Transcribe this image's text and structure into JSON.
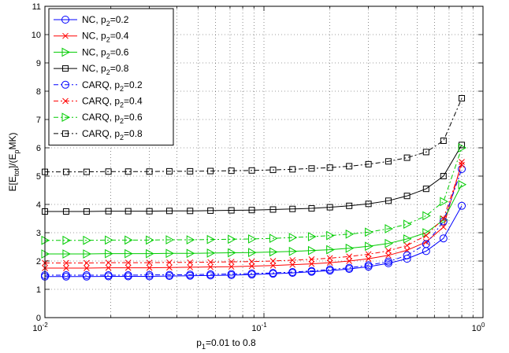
{
  "chart_data": {
    "type": "line",
    "x_scale": "log",
    "x": [
      0.01,
      0.0125,
      0.0155,
      0.0195,
      0.024,
      0.03,
      0.037,
      0.046,
      0.057,
      0.071,
      0.088,
      0.11,
      0.135,
      0.165,
      0.2,
      0.245,
      0.3,
      0.37,
      0.45,
      0.55,
      0.66,
      0.8
    ],
    "xlim": [
      0.01,
      1
    ],
    "ylim": [
      0,
      11
    ],
    "x_ticks": [
      {
        "value": 0.01,
        "base": "10",
        "exp": "-2"
      },
      {
        "value": 0.1,
        "base": "10",
        "exp": "-1"
      },
      {
        "value": 1,
        "base": "10",
        "exp": "0"
      }
    ],
    "y_ticks": [
      "0",
      "1",
      "2",
      "3",
      "4",
      "5",
      "6",
      "7",
      "8",
      "9",
      "10",
      "11"
    ],
    "xlabel": {
      "main": "p",
      "sub": "1",
      "rest": "=0.01 to 0.8"
    },
    "ylabel": {
      "a": "E[E",
      "sub": "tot",
      "b": "]/(E",
      "sub2": "p",
      "c": "MK)"
    },
    "grid": true,
    "legend_position": "top-left",
    "series": [
      {
        "name": "NC,   p2=0.2",
        "legend": {
          "pre": "NC,   p",
          "sub": "2",
          "post": "=0.2"
        },
        "color": "#0000ff",
        "marker": "circle",
        "dash": "solid",
        "values": [
          1.45,
          1.45,
          1.45,
          1.46,
          1.46,
          1.46,
          1.47,
          1.48,
          1.49,
          1.5,
          1.52,
          1.55,
          1.58,
          1.62,
          1.66,
          1.72,
          1.8,
          1.92,
          2.08,
          2.35,
          2.8,
          3.95
        ]
      },
      {
        "name": "NC,   p2=0.4",
        "legend": {
          "pre": "NC,   p",
          "sub": "2",
          "post": "=0.4"
        },
        "color": "#ff0000",
        "marker": "x",
        "dash": "solid",
        "values": [
          1.75,
          1.75,
          1.75,
          1.76,
          1.76,
          1.76,
          1.77,
          1.78,
          1.79,
          1.8,
          1.82,
          1.84,
          1.87,
          1.9,
          1.94,
          2.0,
          2.08,
          2.2,
          2.38,
          2.67,
          3.2,
          5.5
        ]
      },
      {
        "name": "NC,   p2=0.6",
        "legend": {
          "pre": "NC,   p",
          "sub": "2",
          "post": "=0.6"
        },
        "color": "#00cc00",
        "marker": "triangle-right",
        "dash": "solid",
        "values": [
          2.25,
          2.25,
          2.25,
          2.26,
          2.26,
          2.26,
          2.27,
          2.27,
          2.28,
          2.29,
          2.3,
          2.32,
          2.34,
          2.37,
          2.4,
          2.45,
          2.52,
          2.62,
          2.78,
          3.0,
          3.45,
          4.7
        ]
      },
      {
        "name": "NC,   p2=0.8",
        "legend": {
          "pre": "NC,   p",
          "sub": "2",
          "post": "=0.8"
        },
        "color": "#000000",
        "marker": "square",
        "dash": "solid",
        "values": [
          3.75,
          3.75,
          3.75,
          3.76,
          3.76,
          3.76,
          3.77,
          3.77,
          3.78,
          3.79,
          3.8,
          3.82,
          3.84,
          3.86,
          3.9,
          3.95,
          4.02,
          4.13,
          4.3,
          4.55,
          5.0,
          6.1
        ]
      },
      {
        "name": "CARQ, p2=0.2",
        "legend": {
          "pre": "CARQ, p",
          "sub": "2",
          "post": "=0.2"
        },
        "color": "#0000ff",
        "marker": "circle",
        "dash": "dashdot",
        "values": [
          1.5,
          1.5,
          1.5,
          1.5,
          1.5,
          1.51,
          1.51,
          1.52,
          1.53,
          1.54,
          1.56,
          1.58,
          1.61,
          1.65,
          1.7,
          1.76,
          1.85,
          1.98,
          2.2,
          2.6,
          3.4,
          5.25
        ]
      },
      {
        "name": "CARQ, p2=0.4",
        "legend": {
          "pre": "CARQ, p",
          "sub": "2",
          "post": "=0.4"
        },
        "color": "#ff0000",
        "marker": "x",
        "dash": "dashdot",
        "values": [
          1.93,
          1.93,
          1.93,
          1.94,
          1.94,
          1.94,
          1.95,
          1.95,
          1.96,
          1.97,
          1.98,
          2.0,
          2.03,
          2.06,
          2.1,
          2.16,
          2.24,
          2.36,
          2.55,
          2.9,
          3.5,
          5.4
        ]
      },
      {
        "name": "CARQ, p2=0.6",
        "legend": {
          "pre": "CARQ, p",
          "sub": "2",
          "post": "=0.6"
        },
        "color": "#00cc00",
        "marker": "triangle-right",
        "dash": "dashdot",
        "values": [
          2.73,
          2.73,
          2.73,
          2.74,
          2.74,
          2.74,
          2.75,
          2.75,
          2.76,
          2.77,
          2.78,
          2.8,
          2.83,
          2.86,
          2.9,
          2.95,
          3.02,
          3.14,
          3.3,
          3.6,
          4.1,
          6.0
        ]
      },
      {
        "name": "CARQ, p2=0.8",
        "legend": {
          "pre": "CARQ, p",
          "sub": "2",
          "post": "=0.8"
        },
        "color": "#000000",
        "marker": "square",
        "dash": "dashdot",
        "values": [
          5.15,
          5.15,
          5.15,
          5.16,
          5.16,
          5.16,
          5.17,
          5.17,
          5.18,
          5.19,
          5.2,
          5.22,
          5.24,
          5.27,
          5.3,
          5.35,
          5.42,
          5.52,
          5.65,
          5.85,
          6.25,
          7.75
        ]
      }
    ]
  }
}
